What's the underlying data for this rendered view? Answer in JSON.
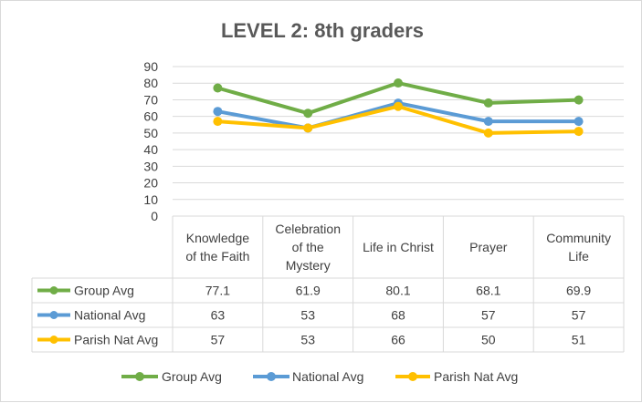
{
  "chart_data": {
    "type": "line",
    "title": "LEVEL 2: 8th graders",
    "categories": [
      [
        "Knowledge",
        "of the Faith"
      ],
      [
        "Celebration",
        "of the",
        "Mystery"
      ],
      [
        "Life in Christ"
      ],
      [
        "Prayer"
      ],
      [
        "Community",
        "Life"
      ]
    ],
    "series": [
      {
        "name": "Group Avg",
        "color": "#70ad47",
        "values": [
          77.1,
          61.9,
          80.1,
          68.1,
          69.9
        ]
      },
      {
        "name": "National Avg",
        "color": "#5b9bd5",
        "values": [
          63,
          53,
          68,
          57,
          57
        ]
      },
      {
        "name": "Parish Nat Avg",
        "color": "#ffc000",
        "values": [
          57,
          53,
          66,
          50,
          51
        ]
      }
    ],
    "ylim": [
      0,
      90
    ],
    "yticks": [
      "0",
      "10",
      "20",
      "30",
      "40",
      "50",
      "60",
      "70",
      "80",
      "90"
    ],
    "table_cells": [
      [
        "77.1",
        "61.9",
        "80.1",
        "68.1",
        "69.9"
      ],
      [
        "63",
        "53",
        "68",
        "57",
        "57"
      ],
      [
        "57",
        "53",
        "66",
        "50",
        "51"
      ]
    ],
    "grid": true,
    "legend": "bottom"
  }
}
